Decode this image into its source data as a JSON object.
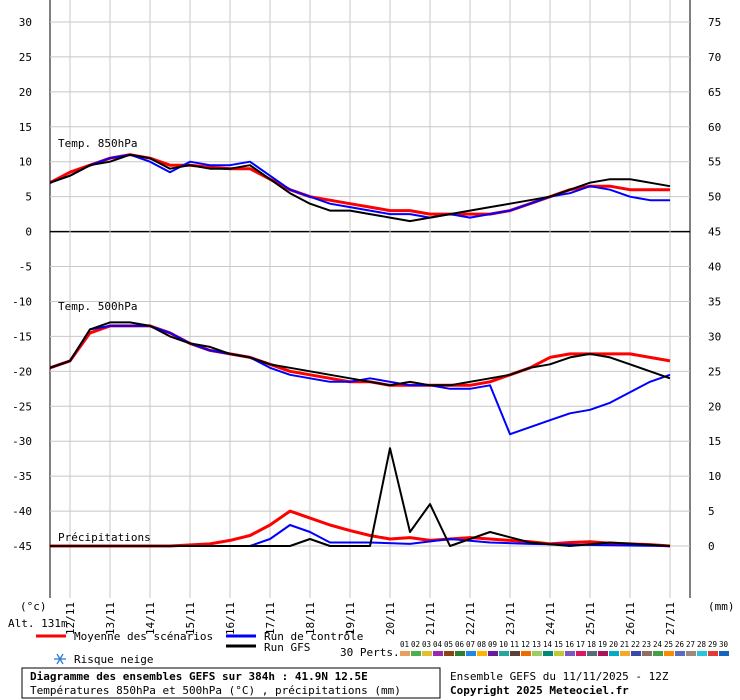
{
  "chart_data": {
    "type": "line",
    "left_axis": {
      "unit": "(°c)",
      "ticks": [
        30,
        25,
        20,
        15,
        10,
        5,
        0,
        -5,
        -10,
        -15,
        -20,
        -25,
        -30,
        -35,
        -40,
        -45
      ]
    },
    "right_axis": {
      "unit": "(mm)",
      "ticks": [
        75,
        70,
        65,
        60,
        55,
        50,
        45,
        40,
        35,
        30,
        25,
        20,
        15,
        10,
        5,
        0
      ]
    },
    "x_ticks": [
      "12/11",
      "13/11",
      "14/11",
      "15/11",
      "16/11",
      "17/11",
      "18/11",
      "19/11",
      "20/11",
      "21/11",
      "22/11",
      "23/11",
      "24/11",
      "25/11",
      "26/11",
      "27/11"
    ],
    "altitude": "Alt. 131m",
    "panels": {
      "t850": {
        "label": "Temp. 850hPa"
      },
      "t500": {
        "label": "Temp. 500hPa"
      },
      "precip": {
        "label": "Précipitations"
      }
    },
    "series": [
      {
        "name": "Moyenne des scénarios",
        "color": "#ff0000",
        "t850": [
          [
            0,
            7
          ],
          [
            0.5,
            8.5
          ],
          [
            1,
            9.5
          ],
          [
            1.5,
            10.5
          ],
          [
            2,
            11
          ],
          [
            2.5,
            10.5
          ],
          [
            3,
            9.5
          ],
          [
            3.5,
            9.5
          ],
          [
            4,
            9.2
          ],
          [
            4.5,
            9
          ],
          [
            5,
            9
          ],
          [
            5.5,
            7.5
          ],
          [
            6,
            6
          ],
          [
            6.5,
            5
          ],
          [
            7,
            4.5
          ],
          [
            7.5,
            4
          ],
          [
            8,
            3.5
          ],
          [
            8.5,
            3
          ],
          [
            9,
            3
          ],
          [
            9.5,
            2.5
          ],
          [
            10,
            2.5
          ],
          [
            10.5,
            2.5
          ],
          [
            11,
            2.5
          ],
          [
            11.5,
            3
          ],
          [
            12,
            4
          ],
          [
            12.5,
            5
          ],
          [
            13,
            6
          ],
          [
            13.5,
            6.5
          ],
          [
            14,
            6.5
          ],
          [
            14.5,
            6
          ],
          [
            15,
            6
          ],
          [
            15.5,
            6
          ]
        ],
        "t500": [
          [
            0,
            -19.5
          ],
          [
            0.5,
            -18.5
          ],
          [
            1,
            -14.5
          ],
          [
            1.5,
            -13.5
          ],
          [
            2,
            -13.5
          ],
          [
            2.5,
            -13.5
          ],
          [
            3,
            -14.5
          ],
          [
            3.5,
            -16
          ],
          [
            4,
            -17
          ],
          [
            4.5,
            -17.5
          ],
          [
            5,
            -18
          ],
          [
            5.5,
            -19
          ],
          [
            6,
            -20
          ],
          [
            6.5,
            -20.5
          ],
          [
            7,
            -21
          ],
          [
            7.5,
            -21.5
          ],
          [
            8,
            -21.5
          ],
          [
            8.5,
            -22
          ],
          [
            9,
            -22
          ],
          [
            9.5,
            -22
          ],
          [
            10,
            -22
          ],
          [
            10.5,
            -22
          ],
          [
            11,
            -21.5
          ],
          [
            11.5,
            -20.5
          ],
          [
            12,
            -19.5
          ],
          [
            12.5,
            -18
          ],
          [
            13,
            -17.5
          ],
          [
            13.5,
            -17.5
          ],
          [
            14,
            -17.5
          ],
          [
            14.5,
            -17.5
          ],
          [
            15,
            -18
          ],
          [
            15.5,
            -18.5
          ]
        ],
        "precip": [
          [
            0,
            0
          ],
          [
            3,
            0
          ],
          [
            4,
            0.3
          ],
          [
            4.5,
            0.8
          ],
          [
            5,
            1.5
          ],
          [
            5.5,
            3
          ],
          [
            6,
            5
          ],
          [
            6.5,
            4
          ],
          [
            7,
            3
          ],
          [
            7.5,
            2.2
          ],
          [
            8,
            1.5
          ],
          [
            8.5,
            1
          ],
          [
            9,
            1.2
          ],
          [
            9.5,
            0.8
          ],
          [
            10,
            1
          ],
          [
            10.5,
            1.2
          ],
          [
            11,
            1
          ],
          [
            11.5,
            0.8
          ],
          [
            12,
            0.6
          ],
          [
            12.5,
            0.3
          ],
          [
            13,
            0.5
          ],
          [
            13.5,
            0.6
          ],
          [
            14,
            0.4
          ],
          [
            14.5,
            0.3
          ],
          [
            15,
            0.2
          ],
          [
            15.5,
            0
          ]
        ]
      },
      {
        "name": "Run de contrôle",
        "color": "#0000ff",
        "t850": [
          [
            0,
            7
          ],
          [
            0.5,
            8
          ],
          [
            1,
            9.5
          ],
          [
            1.5,
            10.5
          ],
          [
            2,
            11
          ],
          [
            2.5,
            10
          ],
          [
            3,
            8.5
          ],
          [
            3.5,
            10
          ],
          [
            4,
            9.5
          ],
          [
            4.5,
            9.5
          ],
          [
            5,
            10
          ],
          [
            5.5,
            8
          ],
          [
            6,
            6
          ],
          [
            6.5,
            5
          ],
          [
            7,
            4
          ],
          [
            7.5,
            3.5
          ],
          [
            8,
            3
          ],
          [
            8.5,
            2.5
          ],
          [
            9,
            2.5
          ],
          [
            9.5,
            2
          ],
          [
            10,
            2.5
          ],
          [
            10.5,
            2
          ],
          [
            11,
            2.5
          ],
          [
            11.5,
            3
          ],
          [
            12,
            4
          ],
          [
            12.5,
            5
          ],
          [
            13,
            5.5
          ],
          [
            13.5,
            6.5
          ],
          [
            14,
            6
          ],
          [
            14.5,
            5
          ],
          [
            15,
            4.5
          ],
          [
            15.5,
            4.5
          ]
        ],
        "t500": [
          [
            0,
            -19.5
          ],
          [
            0.5,
            -18.5
          ],
          [
            1,
            -14
          ],
          [
            1.5,
            -13.5
          ],
          [
            2,
            -13.5
          ],
          [
            2.5,
            -13.5
          ],
          [
            3,
            -14.5
          ],
          [
            3.5,
            -16
          ],
          [
            4,
            -17
          ],
          [
            4.5,
            -17.5
          ],
          [
            5,
            -18
          ],
          [
            5.5,
            -19.5
          ],
          [
            6,
            -20.5
          ],
          [
            6.5,
            -21
          ],
          [
            7,
            -21.5
          ],
          [
            7.5,
            -21.5
          ],
          [
            8,
            -21
          ],
          [
            8.5,
            -21.5
          ],
          [
            9,
            -22
          ],
          [
            9.5,
            -22
          ],
          [
            10,
            -22.5
          ],
          [
            10.5,
            -22.5
          ],
          [
            11,
            -22
          ],
          [
            11.5,
            -29
          ],
          [
            12,
            -28
          ],
          [
            12.5,
            -27
          ],
          [
            13,
            -26
          ],
          [
            13.5,
            -25.5
          ],
          [
            14,
            -24.5
          ],
          [
            14.5,
            -23
          ],
          [
            15,
            -21.5
          ],
          [
            15.5,
            -20.5
          ]
        ],
        "precip": [
          [
            0,
            0
          ],
          [
            5,
            0
          ],
          [
            5.5,
            1
          ],
          [
            6,
            3
          ],
          [
            6.5,
            2
          ],
          [
            7,
            0.5
          ],
          [
            8,
            0.5
          ],
          [
            9,
            0.3
          ],
          [
            10,
            1
          ],
          [
            11,
            0.5
          ],
          [
            12,
            0.3
          ],
          [
            13,
            0.2
          ],
          [
            14,
            0.1
          ],
          [
            15.5,
            0
          ]
        ]
      },
      {
        "name": "Run GFS",
        "color": "#000000",
        "t850": [
          [
            0,
            7
          ],
          [
            0.5,
            8
          ],
          [
            1,
            9.5
          ],
          [
            1.5,
            10
          ],
          [
            2,
            11
          ],
          [
            2.5,
            10.5
          ],
          [
            3,
            9
          ],
          [
            3.5,
            9.5
          ],
          [
            4,
            9
          ],
          [
            4.5,
            9
          ],
          [
            5,
            9.5
          ],
          [
            5.5,
            7.5
          ],
          [
            6,
            5.5
          ],
          [
            6.5,
            4
          ],
          [
            7,
            3
          ],
          [
            7.5,
            3
          ],
          [
            8,
            2.5
          ],
          [
            8.5,
            2
          ],
          [
            9,
            1.5
          ],
          [
            9.5,
            2
          ],
          [
            10,
            2.5
          ],
          [
            10.5,
            3
          ],
          [
            11,
            3.5
          ],
          [
            11.5,
            4
          ],
          [
            12,
            4.5
          ],
          [
            12.5,
            5
          ],
          [
            13,
            6
          ],
          [
            13.5,
            7
          ],
          [
            14,
            7.5
          ],
          [
            14.5,
            7.5
          ],
          [
            15,
            7
          ],
          [
            15.5,
            6.5
          ]
        ],
        "t500": [
          [
            0,
            -19.5
          ],
          [
            0.5,
            -18.5
          ],
          [
            1,
            -14
          ],
          [
            1.5,
            -13
          ],
          [
            2,
            -13
          ],
          [
            2.5,
            -13.5
          ],
          [
            3,
            -15
          ],
          [
            3.5,
            -16
          ],
          [
            4,
            -16.5
          ],
          [
            4.5,
            -17.5
          ],
          [
            5,
            -18
          ],
          [
            5.5,
            -19
          ],
          [
            6,
            -19.5
          ],
          [
            6.5,
            -20
          ],
          [
            7,
            -20.5
          ],
          [
            7.5,
            -21
          ],
          [
            8,
            -21.5
          ],
          [
            8.5,
            -22
          ],
          [
            9,
            -21.5
          ],
          [
            9.5,
            -22
          ],
          [
            10,
            -22
          ],
          [
            10.5,
            -21.5
          ],
          [
            11,
            -21
          ],
          [
            11.5,
            -20.5
          ],
          [
            12,
            -19.5
          ],
          [
            12.5,
            -19
          ],
          [
            13,
            -18
          ],
          [
            13.5,
            -17.5
          ],
          [
            14,
            -18
          ],
          [
            14.5,
            -19
          ],
          [
            15,
            -20
          ],
          [
            15.5,
            -21
          ]
        ],
        "precip": [
          [
            0,
            0
          ],
          [
            6,
            0
          ],
          [
            6.5,
            1
          ],
          [
            7,
            0
          ],
          [
            8,
            0
          ],
          [
            8.5,
            14
          ],
          [
            9,
            2
          ],
          [
            9.5,
            6
          ],
          [
            10,
            0
          ],
          [
            11,
            2
          ],
          [
            12,
            0.5
          ],
          [
            13,
            0
          ],
          [
            14,
            0.5
          ],
          [
            15.5,
            0
          ]
        ]
      }
    ],
    "legend": {
      "mean": "Moyenne des scénarios",
      "control": "Run de contrôle",
      "gfs": "Run GFS",
      "perts": "30 Perts.",
      "snow": "Risque neige",
      "pert_numbers": [
        "01",
        "02",
        "03",
        "04",
        "05",
        "06",
        "07",
        "08",
        "09",
        "10",
        "11",
        "12",
        "13",
        "14",
        "15",
        "16",
        "17",
        "18",
        "19",
        "20",
        "21",
        "22",
        "23",
        "24",
        "25",
        "26",
        "27",
        "28",
        "29",
        "30"
      ],
      "pert_colors": [
        "#e8a060",
        "#4caf50",
        "#e0c030",
        "#9c27b0",
        "#8b4513",
        "#2e7d32",
        "#1e88e5",
        "#ffb300",
        "#6a1b9a",
        "#26a69a",
        "#5d4037",
        "#ef6c00",
        "#9ccc65",
        "#00897b",
        "#c0ca33",
        "#7e57c2",
        "#d81b60",
        "#546e7a",
        "#ad1457",
        "#00acc1",
        "#f9a825",
        "#3949ab",
        "#8d6e63",
        "#43a047",
        "#fb8c00",
        "#5c6bc0",
        "#a1887f",
        "#26c6da",
        "#e53935",
        "#1565c0"
      ]
    },
    "footer": {
      "title": "Diagramme des ensembles GEFS sur 384h : 41.9N 12.5E",
      "subtitle": "Températures 850hPa et 500hPa (°C) , précipitations (mm)",
      "run": "Ensemble GEFS du 11/11/2025 - 12Z",
      "copyright": "Copyright 2025 Meteociel.fr"
    }
  }
}
